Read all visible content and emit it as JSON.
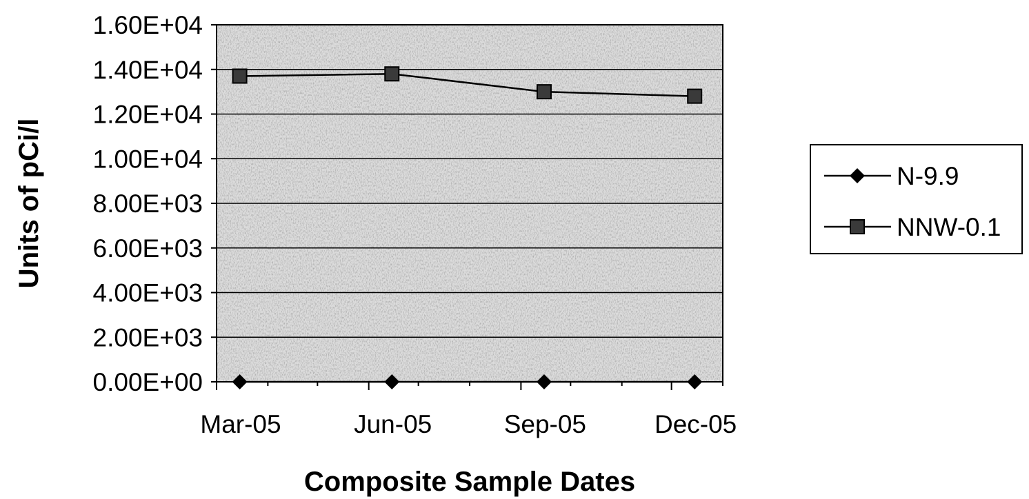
{
  "chart_data": {
    "type": "line",
    "xlabel": "Composite Sample Dates",
    "ylabel": "Units of pCi/l",
    "x": [
      "2005-03-15",
      "2005-06-15",
      "2005-09-15",
      "2005-12-15"
    ],
    "x_ticks": [
      "Mar-05",
      "Jun-05",
      "Sep-05",
      "Dec-05"
    ],
    "y_ticks": [
      "0.00E+00",
      "2.00E+03",
      "4.00E+03",
      "6.00E+03",
      "8.00E+03",
      "1.00E+04",
      "1.20E+04",
      "1.40E+04",
      "1.60E+04"
    ],
    "ylim": [
      0,
      16000
    ],
    "grid": true,
    "legend_position": "right",
    "series": [
      {
        "name": "N-9.9",
        "marker": "diamond",
        "values": [
          0,
          0,
          0,
          0
        ]
      },
      {
        "name": "NNW-0.1",
        "marker": "square",
        "values": [
          13700,
          13800,
          13000,
          12800
        ]
      }
    ],
    "colors": {
      "line": "#000000",
      "plot_background": "#d9d9d9",
      "gridline": "#000000"
    }
  }
}
